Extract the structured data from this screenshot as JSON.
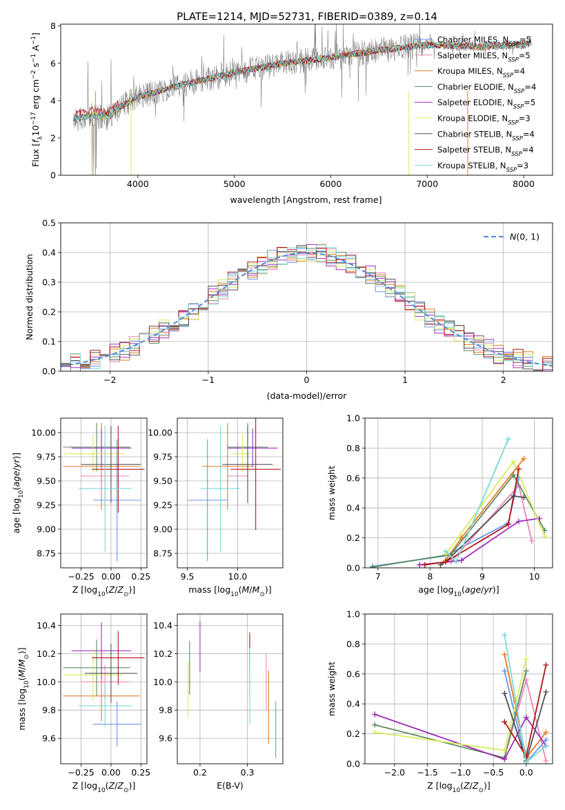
{
  "figure": {
    "title": "PLATE=1214, MJD=52731, FIBERID=0389, z=0.14"
  },
  "models": [
    {
      "label": "Chabrier MILES, N",
      "sub": "SSP",
      "count": "=5",
      "color": "#6495ed"
    },
    {
      "label": "Salpeter MILES, N",
      "sub": "SSP",
      "count": "=5",
      "color": "#e886b4"
    },
    {
      "label": "Kroupa MILES, N",
      "sub": "SSP",
      "count": "=4",
      "color": "#e07b20"
    },
    {
      "label": "Chabrier ELODIE, N",
      "sub": "SSP",
      "count": "=4",
      "color": "#5b8a5b"
    },
    {
      "label": "Salpeter ELODIE, N",
      "sub": "SSP",
      "count": "=5",
      "color": "#a02cb8"
    },
    {
      "label": "Kroupa ELODIE, N",
      "sub": "SSP",
      "count": "=3",
      "color": "#d8ec58"
    },
    {
      "label": "Chabrier STELIB, N",
      "sub": "SSP",
      "count": "=4",
      "color": "#505050"
    },
    {
      "label": "Salpeter STELIB, N",
      "sub": "SSP",
      "count": "=4",
      "color": "#b01515"
    },
    {
      "label": "Kroupa STELIB, N",
      "sub": "SSP",
      "count": "=3",
      "color": "#7ad8d8"
    }
  ],
  "chart_data": [
    {
      "id": "spectrum",
      "type": "line",
      "xlabel": "wavelength [Angstrom, rest frame]",
      "ylabel": "Flux [f_λ 10^-17 erg cm^-2 s^-1 A^-1]",
      "ylabel_parts": {
        "a": "Flux [",
        "b": "f",
        "c": "λ",
        "d": "10",
        "e": "−17",
        "f": " erg cm",
        "g": "−2",
        "h": " s",
        "i": "−1",
        "j": " A",
        "k": "−1",
        "l": "]"
      },
      "xlim": [
        3200,
        8300
      ],
      "ylim": [
        0,
        8.1
      ],
      "xticks": [
        4000,
        5000,
        6000,
        7000,
        8000
      ],
      "yticks": [
        0,
        2,
        4,
        6,
        8
      ],
      "data_color": "#808080",
      "data_range": [
        3330,
        8080
      ],
      "continuum": [
        [
          3330,
          3.0
        ],
        [
          3500,
          3.2
        ],
        [
          3700,
          3.1
        ],
        [
          3800,
          3.6
        ],
        [
          4000,
          4.2
        ],
        [
          4500,
          4.9
        ],
        [
          5000,
          5.5
        ],
        [
          5500,
          6.0
        ],
        [
          6000,
          6.3
        ],
        [
          6500,
          6.7
        ],
        [
          7000,
          7.0
        ],
        [
          7500,
          6.9
        ],
        [
          8000,
          7.0
        ],
        [
          8080,
          7.1
        ]
      ],
      "grid": false
    },
    {
      "id": "residuals",
      "type": "histogram",
      "xlabel": "(data-model)/error",
      "ylabel": "Normed distribution",
      "xlim": [
        -2.5,
        2.5
      ],
      "ylim": [
        0,
        0.5
      ],
      "xticks": [
        -2,
        -1,
        0,
        1,
        2
      ],
      "yticks": [
        0,
        0.1,
        0.2,
        0.3,
        0.4,
        0.5
      ],
      "bin_width": 0.1,
      "bin_start": -2.5,
      "reference_label": "N(0,1)",
      "reference_color": "#5b8ed6",
      "legend_position": "upper right",
      "grid": true
    },
    {
      "id": "age_vs_Z",
      "type": "errorbar",
      "xlabel": "Z [log10(Z/Z⊙)]",
      "ylabel": "age [log10(age/yr)]",
      "xlim": [
        -0.42,
        0.3
      ],
      "ylim": [
        8.6,
        10.15
      ],
      "xticks": [
        -0.25,
        0.0,
        0.25
      ],
      "yticks": [
        8.75,
        9.0,
        9.25,
        9.5,
        9.75,
        10.0
      ],
      "points": [
        {
          "x": 0.05,
          "y": 9.3,
          "xerr": 0.2,
          "yerr": 0.63
        },
        {
          "x": -0.05,
          "y": 9.55,
          "xerr": 0.2,
          "yerr": 0.35
        },
        {
          "x": -0.08,
          "y": 9.65,
          "xerr": 0.32,
          "yerr": 0.45
        },
        {
          "x": -0.12,
          "y": 9.85,
          "xerr": 0.28,
          "yerr": 0.25
        },
        {
          "x": -0.08,
          "y": 9.84,
          "xerr": 0.25,
          "yerr": 0.2
        },
        {
          "x": -0.15,
          "y": 9.78,
          "xerr": 0.25,
          "yerr": 0.2
        },
        {
          "x": 0.0,
          "y": 9.67,
          "xerr": 0.25,
          "yerr": 0.4
        },
        {
          "x": 0.06,
          "y": 9.62,
          "xerr": 0.22,
          "yerr": 0.45
        },
        {
          "x": -0.05,
          "y": 9.42,
          "xerr": 0.22,
          "yerr": 0.65
        }
      ],
      "grid": true
    },
    {
      "id": "age_vs_mass",
      "type": "errorbar",
      "xlabel": "mass [log10(M/M⊙)]",
      "ylabel": "",
      "xlim": [
        9.4,
        10.45
      ],
      "ylim": [
        8.6,
        10.15
      ],
      "xticks": [
        9.5,
        10.0
      ],
      "yticks": [
        8.75,
        9.0,
        9.25,
        9.5,
        9.75,
        10.0
      ],
      "points": [
        {
          "x": 9.7,
          "y": 9.3,
          "xerr": 0.2,
          "yerr": 0.63
        },
        {
          "x": 10.0,
          "y": 9.55,
          "xerr": 0.1,
          "yerr": 0.35
        },
        {
          "x": 9.9,
          "y": 9.65,
          "xerr": 0.25,
          "yerr": 0.45
        },
        {
          "x": 10.1,
          "y": 9.85,
          "xerr": 0.2,
          "yerr": 0.25
        },
        {
          "x": 10.15,
          "y": 9.84,
          "xerr": 0.25,
          "yerr": 0.2
        },
        {
          "x": 10.05,
          "y": 9.78,
          "xerr": 0.1,
          "yerr": 0.2
        },
        {
          "x": 10.1,
          "y": 9.67,
          "xerr": 0.25,
          "yerr": 0.4
        },
        {
          "x": 10.18,
          "y": 9.62,
          "xerr": 0.25,
          "yerr": 0.63
        },
        {
          "x": 9.83,
          "y": 9.42,
          "xerr": 0.2,
          "yerr": 0.65
        }
      ],
      "grid": true
    },
    {
      "id": "weight_vs_age",
      "type": "line",
      "xlabel": "age [log10(age/yr)]",
      "ylabel": "mass weight",
      "xlim": [
        6.75,
        10.35
      ],
      "ylim": [
        0,
        1.0
      ],
      "xticks": [
        7,
        8,
        9,
        10
      ],
      "yticks": [
        0.0,
        0.2,
        0.4,
        0.6,
        0.8,
        1.0
      ],
      "series": [
        {
          "color": "#6495ed",
          "x": [
            6.9,
            8.3,
            9.5,
            9.7
          ],
          "y": [
            0.01,
            0.08,
            0.3,
            0.6
          ]
        },
        {
          "color": "#e886b4",
          "x": [
            7.8,
            8.4,
            9.7,
            9.95
          ],
          "y": [
            0.02,
            0.04,
            0.55,
            0.18
          ]
        },
        {
          "color": "#e07b20",
          "x": [
            8.3,
            8.6,
            9.8
          ],
          "y": [
            0.05,
            0.2,
            0.73
          ]
        },
        {
          "color": "#5b8a5b",
          "x": [
            6.9,
            8.4,
            9.6,
            10.2
          ],
          "y": [
            0.005,
            0.09,
            0.62,
            0.25
          ]
        },
        {
          "color": "#a02cb8",
          "x": [
            7.8,
            8.6,
            9.7,
            10.1
          ],
          "y": [
            0.02,
            0.05,
            0.31,
            0.33
          ]
        },
        {
          "color": "#d8ec58",
          "x": [
            8.3,
            9.6,
            10.2
          ],
          "y": [
            0.09,
            0.71,
            0.21
          ]
        },
        {
          "color": "#505050",
          "x": [
            8.2,
            8.3,
            9.6,
            9.8
          ],
          "y": [
            0.02,
            0.04,
            0.48,
            0.47
          ]
        },
        {
          "color": "#b01515",
          "x": [
            7.9,
            8.3,
            9.5,
            9.7
          ],
          "y": [
            0.02,
            0.04,
            0.29,
            0.66
          ]
        },
        {
          "color": "#7ad8d8",
          "x": [
            8.3,
            8.5,
            9.5
          ],
          "y": [
            0.11,
            0.04,
            0.86
          ]
        }
      ],
      "grid": true
    },
    {
      "id": "mass_vs_Z",
      "type": "errorbar",
      "xlabel": "Z [log10(Z/Z⊙)]",
      "ylabel": "mass [log10(M/M⊙)]",
      "xlim": [
        -0.42,
        0.3
      ],
      "ylim": [
        9.42,
        10.48
      ],
      "xticks": [
        -0.25,
        0.0,
        0.25
      ],
      "yticks": [
        9.6,
        9.8,
        10.0,
        10.2,
        10.4
      ],
      "points": [
        {
          "x": 0.05,
          "y": 9.7,
          "xerr": 0.2,
          "yerr": 0.16
        },
        {
          "x": -0.05,
          "y": 10.0,
          "xerr": 0.2,
          "yerr": 0.12
        },
        {
          "x": -0.08,
          "y": 9.9,
          "xerr": 0.32,
          "yerr": 0.18
        },
        {
          "x": -0.12,
          "y": 10.1,
          "xerr": 0.28,
          "yerr": 0.2
        },
        {
          "x": -0.08,
          "y": 10.22,
          "xerr": 0.25,
          "yerr": 0.2
        },
        {
          "x": -0.15,
          "y": 10.05,
          "xerr": 0.25,
          "yerr": 0.18
        },
        {
          "x": 0.0,
          "y": 10.06,
          "xerr": 0.22,
          "yerr": 0.21
        },
        {
          "x": 0.06,
          "y": 10.17,
          "xerr": 0.22,
          "yerr": 0.19
        },
        {
          "x": -0.05,
          "y": 9.83,
          "xerr": 0.22,
          "yerr": 0.15
        }
      ],
      "grid": true
    },
    {
      "id": "mass_vs_ebv",
      "type": "errorbar",
      "xlabel": "E(B-V)",
      "ylabel": "",
      "xlim": [
        0.152,
        0.375
      ],
      "ylim": [
        9.42,
        10.48
      ],
      "xticks": [
        0.2,
        0.3
      ],
      "yticks": [
        9.6,
        9.8,
        10.0,
        10.2,
        10.4
      ],
      "points": [
        {
          "x": 0.36,
          "y": 9.66,
          "xerr": 0.0,
          "yerr": 0.2
        },
        {
          "x": 0.34,
          "y": 10.0,
          "xerr": 0.0,
          "yerr": 0.2
        },
        {
          "x": 0.345,
          "y": 9.82,
          "xerr": 0.0,
          "yerr": 0.26
        },
        {
          "x": 0.178,
          "y": 10.1,
          "xerr": 0.0,
          "yerr": 0.19
        },
        {
          "x": 0.2,
          "y": 10.25,
          "xerr": 0.0,
          "yerr": 0.18
        },
        {
          "x": 0.175,
          "y": 9.95,
          "xerr": 0.0,
          "yerr": 0.2
        },
        {
          "x": 0.305,
          "y": 10.1,
          "xerr": 0.0,
          "yerr": 0.2
        },
        {
          "x": 0.305,
          "y": 10.22,
          "xerr": 0.0,
          "yerr": 0.13
        },
        {
          "x": 0.305,
          "y": 9.97,
          "xerr": 0.0,
          "yerr": 0.27
        }
      ],
      "grid": true
    },
    {
      "id": "weight_vs_Z",
      "type": "line",
      "xlabel": "Z [log10(Z/Z⊙)]",
      "ylabel": "mass weight",
      "xlim": [
        -2.45,
        0.4
      ],
      "ylim": [
        0,
        1.0
      ],
      "xticks": [
        -2.0,
        -1.5,
        -1.0,
        -0.5,
        0.0
      ],
      "yticks": [
        0.0,
        0.2,
        0.4,
        0.6,
        0.8,
        1.0
      ],
      "series": [
        {
          "color": "#6495ed",
          "x": [
            -0.33,
            0.0,
            0.3
          ],
          "y": [
            0.62,
            0.01,
            0.16
          ]
        },
        {
          "color": "#e886b4",
          "x": [
            -0.33,
            0.0,
            0.3
          ],
          "y": [
            0.04,
            0.56,
            0.02
          ]
        },
        {
          "color": "#e07b20",
          "x": [
            -0.33,
            0.0,
            0.3
          ],
          "y": [
            0.73,
            0.04,
            0.21
          ]
        },
        {
          "color": "#5b8a5b",
          "x": [
            -2.3,
            -0.33,
            0.0
          ],
          "y": [
            0.26,
            0.04,
            0.62
          ]
        },
        {
          "color": "#a02cb8",
          "x": [
            -2.3,
            -0.33,
            0.0,
            0.3
          ],
          "y": [
            0.33,
            0.03,
            0.31,
            0.12
          ]
        },
        {
          "color": "#d8ec58",
          "x": [
            -2.3,
            -0.33,
            0.0
          ],
          "y": [
            0.21,
            0.09,
            0.7
          ]
        },
        {
          "color": "#505050",
          "x": [
            -0.33,
            0.0,
            0.3
          ],
          "y": [
            0.47,
            0.02,
            0.48
          ]
        },
        {
          "color": "#b01515",
          "x": [
            -0.33,
            0.0,
            0.3
          ],
          "y": [
            0.28,
            0.05,
            0.66
          ]
        },
        {
          "color": "#7ad8d8",
          "x": [
            -0.33,
            0.0,
            0.3
          ],
          "y": [
            0.86,
            0.01,
            0.12
          ]
        }
      ],
      "grid": true
    }
  ]
}
